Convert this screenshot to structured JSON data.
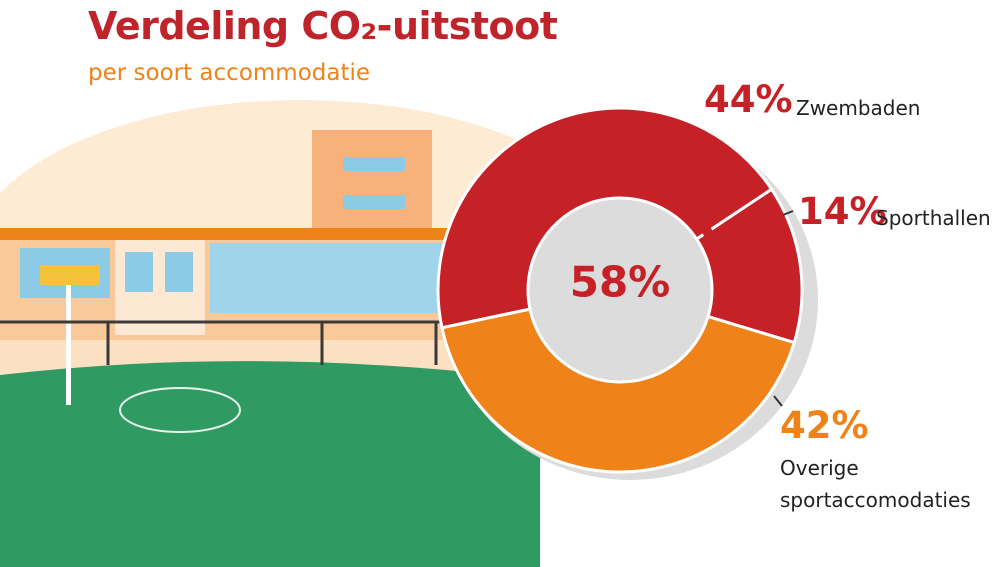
{
  "chart_data": {
    "type": "donut",
    "title": "Verdeling CO₂-uitstoot",
    "subtitle": "per soort accommodatie",
    "categories": [
      "Zwembaden",
      "Sporthallen",
      "Overige sportaccomodaties"
    ],
    "values": [
      44,
      14,
      42
    ],
    "value_labels": [
      "44%",
      "14%",
      "42%"
    ],
    "colors": [
      "#c52127",
      "#c52127",
      "#ef8218"
    ],
    "center_value": 58,
    "center_label": "58%"
  }
}
